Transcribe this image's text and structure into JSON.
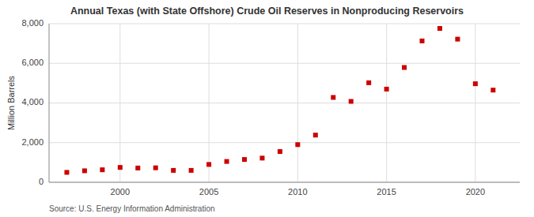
{
  "chart_data": {
    "type": "scatter",
    "title": "Annual Texas (with State Offshore) Crude Oil Reserves in Nonproducing Reservoirs",
    "ylabel": "Million Barrels",
    "source": "Source: U.S. Energy Information Administration",
    "color": "#cc0000",
    "marker": "square",
    "grid": true,
    "x": [
      1997,
      1998,
      1999,
      2000,
      2001,
      2002,
      2003,
      2004,
      2005,
      2006,
      2007,
      2008,
      2009,
      2010,
      2011,
      2012,
      2013,
      2014,
      2015,
      2016,
      2017,
      2018,
      2019,
      2020,
      2021
    ],
    "values": [
      500,
      580,
      630,
      750,
      720,
      730,
      600,
      600,
      900,
      1050,
      1150,
      1220,
      1550,
      1900,
      2380,
      4280,
      4080,
      5020,
      4700,
      5790,
      7130,
      7760,
      7220,
      4970,
      4650
    ],
    "xlim": [
      1996,
      2022.5
    ],
    "ylim": [
      0,
      8000
    ],
    "xticks": [
      2000,
      2005,
      2010,
      2015,
      2020
    ],
    "yticks": [
      0,
      {
        "value": 2000,
        "label": "2,000"
      },
      {
        "value": 4000,
        "label": "4,000"
      },
      {
        "value": 6000,
        "label": "6,000"
      },
      {
        "value": 8000,
        "label": "8,000"
      }
    ]
  }
}
